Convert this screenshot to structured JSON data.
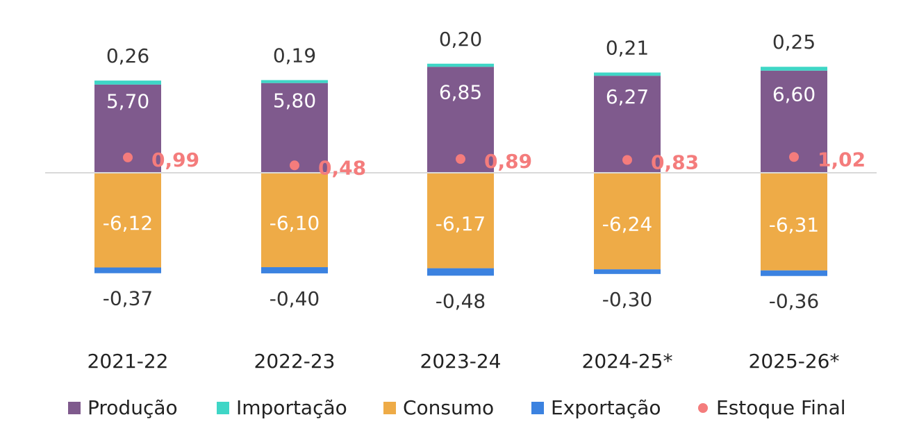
{
  "chart_data": {
    "type": "bar",
    "stacked": true,
    "categories": [
      "2021-22",
      "2022-23",
      "2023-24",
      "2024-25*",
      "2025-26*"
    ],
    "series": [
      {
        "name": "Produção",
        "values": [
          5.7,
          5.8,
          6.85,
          6.27,
          6.6
        ],
        "labels": [
          "5,70",
          "5,80",
          "6,85",
          "6,27",
          "6,60"
        ],
        "color": "#7f5a8d"
      },
      {
        "name": "Importação",
        "values": [
          0.26,
          0.19,
          0.2,
          0.21,
          0.25
        ],
        "labels": [
          "0,26",
          "0,19",
          "0,20",
          "0,21",
          "0,25"
        ],
        "color": "#3fd6c6"
      },
      {
        "name": "Consumo",
        "values": [
          -6.12,
          -6.1,
          -6.17,
          -6.24,
          -6.31
        ],
        "labels": [
          "-6,12",
          "-6,10",
          "-6,17",
          "-6,24",
          "-6,31"
        ],
        "color": "#eeab47"
      },
      {
        "name": "Exportação",
        "values": [
          -0.37,
          -0.4,
          -0.48,
          -0.3,
          -0.36
        ],
        "labels": [
          "-0,37",
          "-0,40",
          "-0,48",
          "-0,30",
          "-0,36"
        ],
        "color": "#3b82e0"
      }
    ],
    "points": {
      "name": "Estoque Final",
      "values": [
        0.99,
        0.48,
        0.89,
        0.83,
        1.02
      ],
      "labels": [
        "0,99",
        "0,48",
        "0,89",
        "0,83",
        "1,02"
      ],
      "color": "#f47c7c"
    },
    "legend": {
      "position": "bottom"
    },
    "grid": false
  }
}
